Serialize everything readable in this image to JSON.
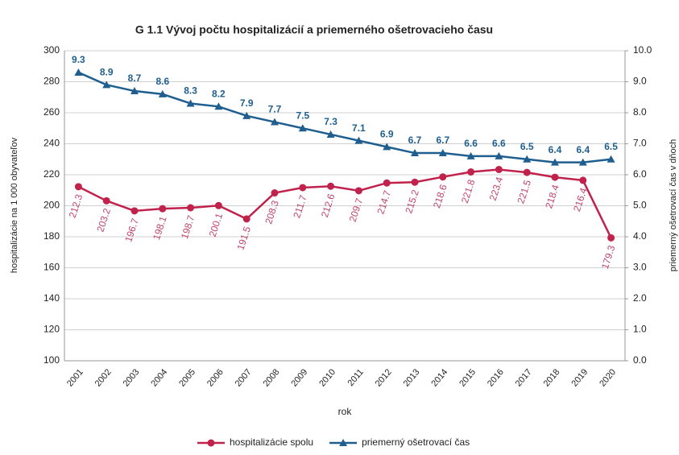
{
  "chart_data": {
    "type": "line",
    "title": "G 1.1 Vývoj počtu hospitalizácií a priemerného ošetrovacieho času",
    "x_label": "rok",
    "y_label": "hospitalizácie na 1 000 obyvateľov",
    "y2_label": "priemerný ošetrovací čas v dňoch",
    "categories": [
      "2001",
      "2002",
      "2003",
      "2004",
      "2005",
      "2006",
      "2007",
      "2008",
      "2009",
      "2010",
      "2011",
      "2012",
      "2013",
      "2014",
      "2015",
      "2016",
      "2017",
      "2018",
      "2019",
      "2020"
    ],
    "series": [
      {
        "name": "hospitalizácie spolu",
        "color": "#c0224c",
        "marker": "circle",
        "values": [
          212.3,
          203.2,
          196.7,
          198.1,
          198.7,
          200.1,
          191.5,
          208.3,
          211.7,
          212.6,
          209.7,
          214.7,
          215.2,
          218.6,
          221.8,
          223.4,
          221.5,
          218.4,
          216.4,
          179.3
        ]
      },
      {
        "name": "priemerný ošetrovací čas",
        "color": "#1f5f8f",
        "marker": "triangle",
        "axis": "y2",
        "values": [
          9.3,
          8.9,
          8.7,
          8.6,
          8.3,
          8.2,
          7.9,
          7.7,
          7.5,
          7.3,
          7.1,
          6.9,
          6.7,
          6.7,
          6.6,
          6.6,
          6.5,
          6.4,
          6.4,
          6.5
        ]
      }
    ],
    "ylim": [
      100,
      300
    ],
    "yticks": [
      100,
      120,
      140,
      160,
      180,
      200,
      220,
      240,
      260,
      280,
      300
    ],
    "y2lim": [
      0,
      10
    ],
    "y2ticks": [
      {
        "value": 0,
        "label": "0.0"
      },
      {
        "value": 1,
        "label": "1.0"
      },
      {
        "value": 2,
        "label": "2.0"
      },
      {
        "value": 3,
        "label": "3.0"
      },
      {
        "value": 4,
        "label": "4.0"
      },
      {
        "value": 5,
        "label": "5.0"
      },
      {
        "value": 6,
        "label": "6.0"
      },
      {
        "value": 7,
        "label": "7.0"
      },
      {
        "value": 8,
        "label": "8.0"
      },
      {
        "value": 9,
        "label": "9.0"
      },
      {
        "value": 10,
        "label": "10.0"
      }
    ],
    "grid": true,
    "legend": "bottom"
  }
}
